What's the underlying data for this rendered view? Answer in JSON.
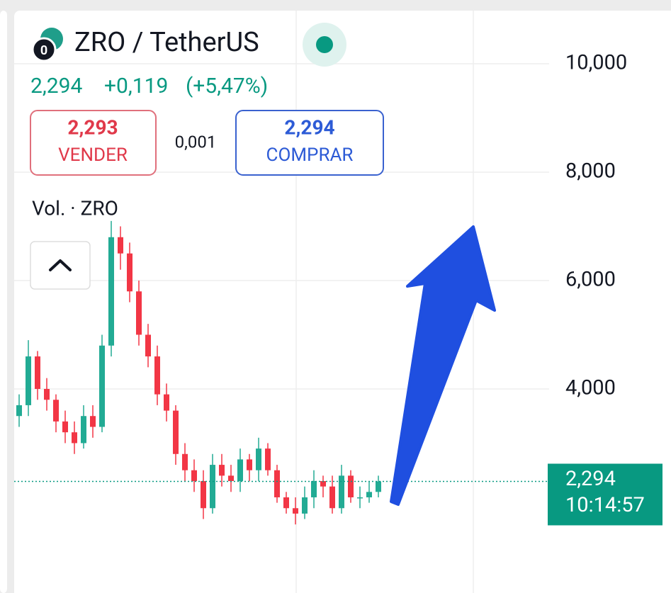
{
  "header": {
    "title": "ZRO / TetherUS",
    "price": "2,294",
    "change": "+0,119",
    "change_pct": "(+5,47%)",
    "sell_price": "2,293",
    "sell_label": "VENDER",
    "spread": "0,001",
    "buy_price": "2,294",
    "buy_label": "COMPRAR",
    "volume_label": "Vol. · ZRO"
  },
  "chart_data": {
    "type": "candlestick",
    "open": [
      3.5,
      3.7,
      4.6,
      4.0,
      3.8,
      3.4,
      3.2,
      3.0,
      3.5,
      3.3,
      4.8,
      6.8,
      6.5,
      5.8,
      5.0,
      4.6,
      3.9,
      3.6,
      2.8,
      2.5,
      2.3,
      1.8,
      2.6,
      2.4,
      2.3,
      2.7,
      2.5,
      2.9,
      2.5,
      2.0,
      1.8,
      1.7,
      2.0,
      2.3,
      2.2,
      1.8,
      2.4,
      2.0,
      2.0,
      2.1
    ],
    "high": [
      3.9,
      4.9,
      4.7,
      4.2,
      3.9,
      3.6,
      3.4,
      3.7,
      3.7,
      5.0,
      7.1,
      7.0,
      6.7,
      6.0,
      5.2,
      4.8,
      4.1,
      3.7,
      3.0,
      2.7,
      2.5,
      2.8,
      2.8,
      2.6,
      2.9,
      2.8,
      3.1,
      3.0,
      2.6,
      2.1,
      2.0,
      2.2,
      2.5,
      2.4,
      2.4,
      2.6,
      2.5,
      2.2,
      2.3,
      2.4
    ],
    "low": [
      3.3,
      3.5,
      3.8,
      3.6,
      3.2,
      3.0,
      2.8,
      2.9,
      3.1,
      3.2,
      4.6,
      6.2,
      5.6,
      4.8,
      4.4,
      3.7,
      3.4,
      2.6,
      2.3,
      2.1,
      1.6,
      1.7,
      2.2,
      2.1,
      2.1,
      2.3,
      2.3,
      2.4,
      1.9,
      1.7,
      1.5,
      1.6,
      1.8,
      2.0,
      1.7,
      1.7,
      1.9,
      1.8,
      1.9,
      2.0
    ],
    "close": [
      3.7,
      4.6,
      4.0,
      3.8,
      3.4,
      3.2,
      3.0,
      3.5,
      3.3,
      4.8,
      6.8,
      6.5,
      5.8,
      5.0,
      4.6,
      3.9,
      3.6,
      2.8,
      2.5,
      2.3,
      1.8,
      2.6,
      2.4,
      2.3,
      2.7,
      2.5,
      2.9,
      2.5,
      2.0,
      1.8,
      1.7,
      2.0,
      2.3,
      2.2,
      1.8,
      2.4,
      2.0,
      2.0,
      2.1,
      2.294
    ],
    "up_color": "#22ab94",
    "down_color": "#f23645",
    "ylim": [
      0.235,
      10.98
    ],
    "yticks": [
      {
        "value": 4,
        "label": "4,000"
      },
      {
        "value": 6,
        "label": "6,000"
      },
      {
        "value": 8,
        "label": "8,000"
      },
      {
        "value": 10,
        "label": "10,000"
      }
    ],
    "grid": true,
    "price_line": {
      "value": 2.294,
      "label": "2,294",
      "time": "10:14:57",
      "color": "#089981"
    }
  }
}
